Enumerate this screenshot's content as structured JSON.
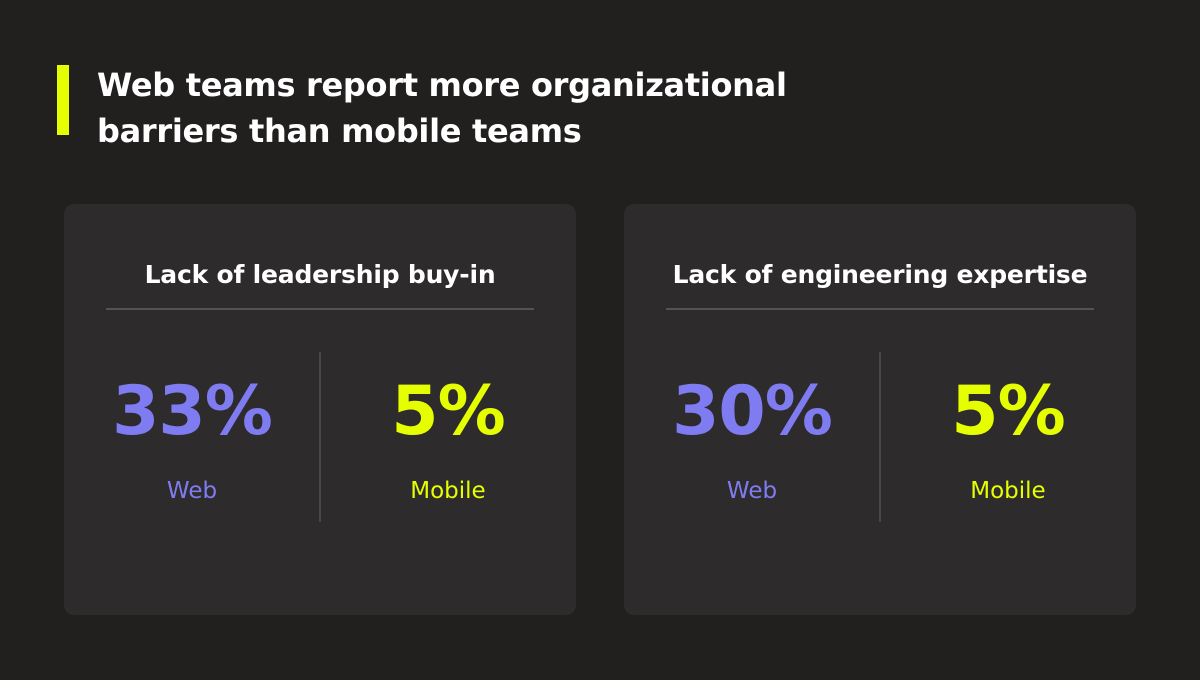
{
  "title": "Web teams report more organizational barriers than mobile teams",
  "colors": {
    "background": "#221f1f",
    "card": "#2d2b2b",
    "accent": "#e6ff00",
    "web": "#7f7cf2",
    "mobile": "#e6ff00"
  },
  "cards": [
    {
      "heading": "Lack of leadership buy-in",
      "web": {
        "value": "33%",
        "label": "Web"
      },
      "mobile": {
        "value": "5%",
        "label": "Mobile"
      }
    },
    {
      "heading": "Lack of engineering expertise",
      "web": {
        "value": "30%",
        "label": "Web"
      },
      "mobile": {
        "value": "5%",
        "label": "Mobile"
      }
    }
  ]
}
